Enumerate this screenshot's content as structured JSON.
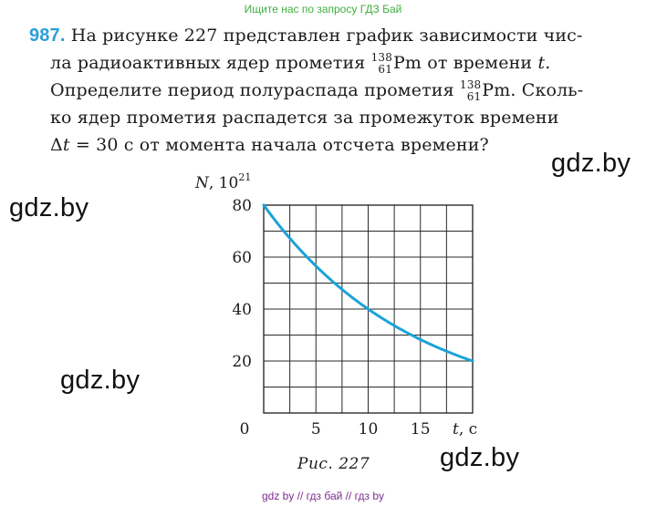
{
  "top_note": "Ищите нас по запросу ГДЗ Бай",
  "problem": {
    "number": "987.",
    "line1_text": "На рисунке 227 представлен график зависимости чис-",
    "line2_pre": "ла радиоактивных ядер прометия ",
    "line2_post": " от времени ",
    "line2_var": "t",
    "line2_end": ".",
    "line3_pre": "Определите период полураспада прометия ",
    "line3_post": ". Сколь-",
    "line4_text": "ко ядер прометия распадется за промежуток времени",
    "line5_delta": "Δ",
    "line5_var": "t",
    "line5_rest": " = 30 с от момента начала отсчета времени?",
    "nuclide": {
      "mass": "138",
      "charge": "61",
      "symbol": "Pm"
    }
  },
  "watermarks": [
    "gdz.by",
    "gdz.by",
    "gdz.by",
    "gdz.by"
  ],
  "caption": "Рис. 227",
  "bottom_note": "gdz by  //  гдз бай  //  гдз by",
  "chart_data": {
    "type": "line",
    "title": "",
    "xlabel_var": "t",
    "xlabel_unit": ", с",
    "ylabel_var": "N",
    "ylabel_unit": ", 10",
    "ylabel_exp": "21",
    "xlim": [
      0,
      20
    ],
    "ylim": [
      0,
      80
    ],
    "x_ticks": [
      0,
      5,
      10,
      15
    ],
    "y_ticks": [
      20,
      40,
      60,
      80
    ],
    "grid": true,
    "grid_step_x": 2.5,
    "grid_step_y": 10,
    "series": [
      {
        "color": "#1aa3d9",
        "x": [
          0,
          2.5,
          5,
          7.5,
          10,
          12.5,
          15,
          17.5,
          20
        ],
        "y": [
          80,
          67.3,
          56.6,
          47.6,
          40,
          33.6,
          28.3,
          23.8,
          20
        ]
      }
    ]
  }
}
